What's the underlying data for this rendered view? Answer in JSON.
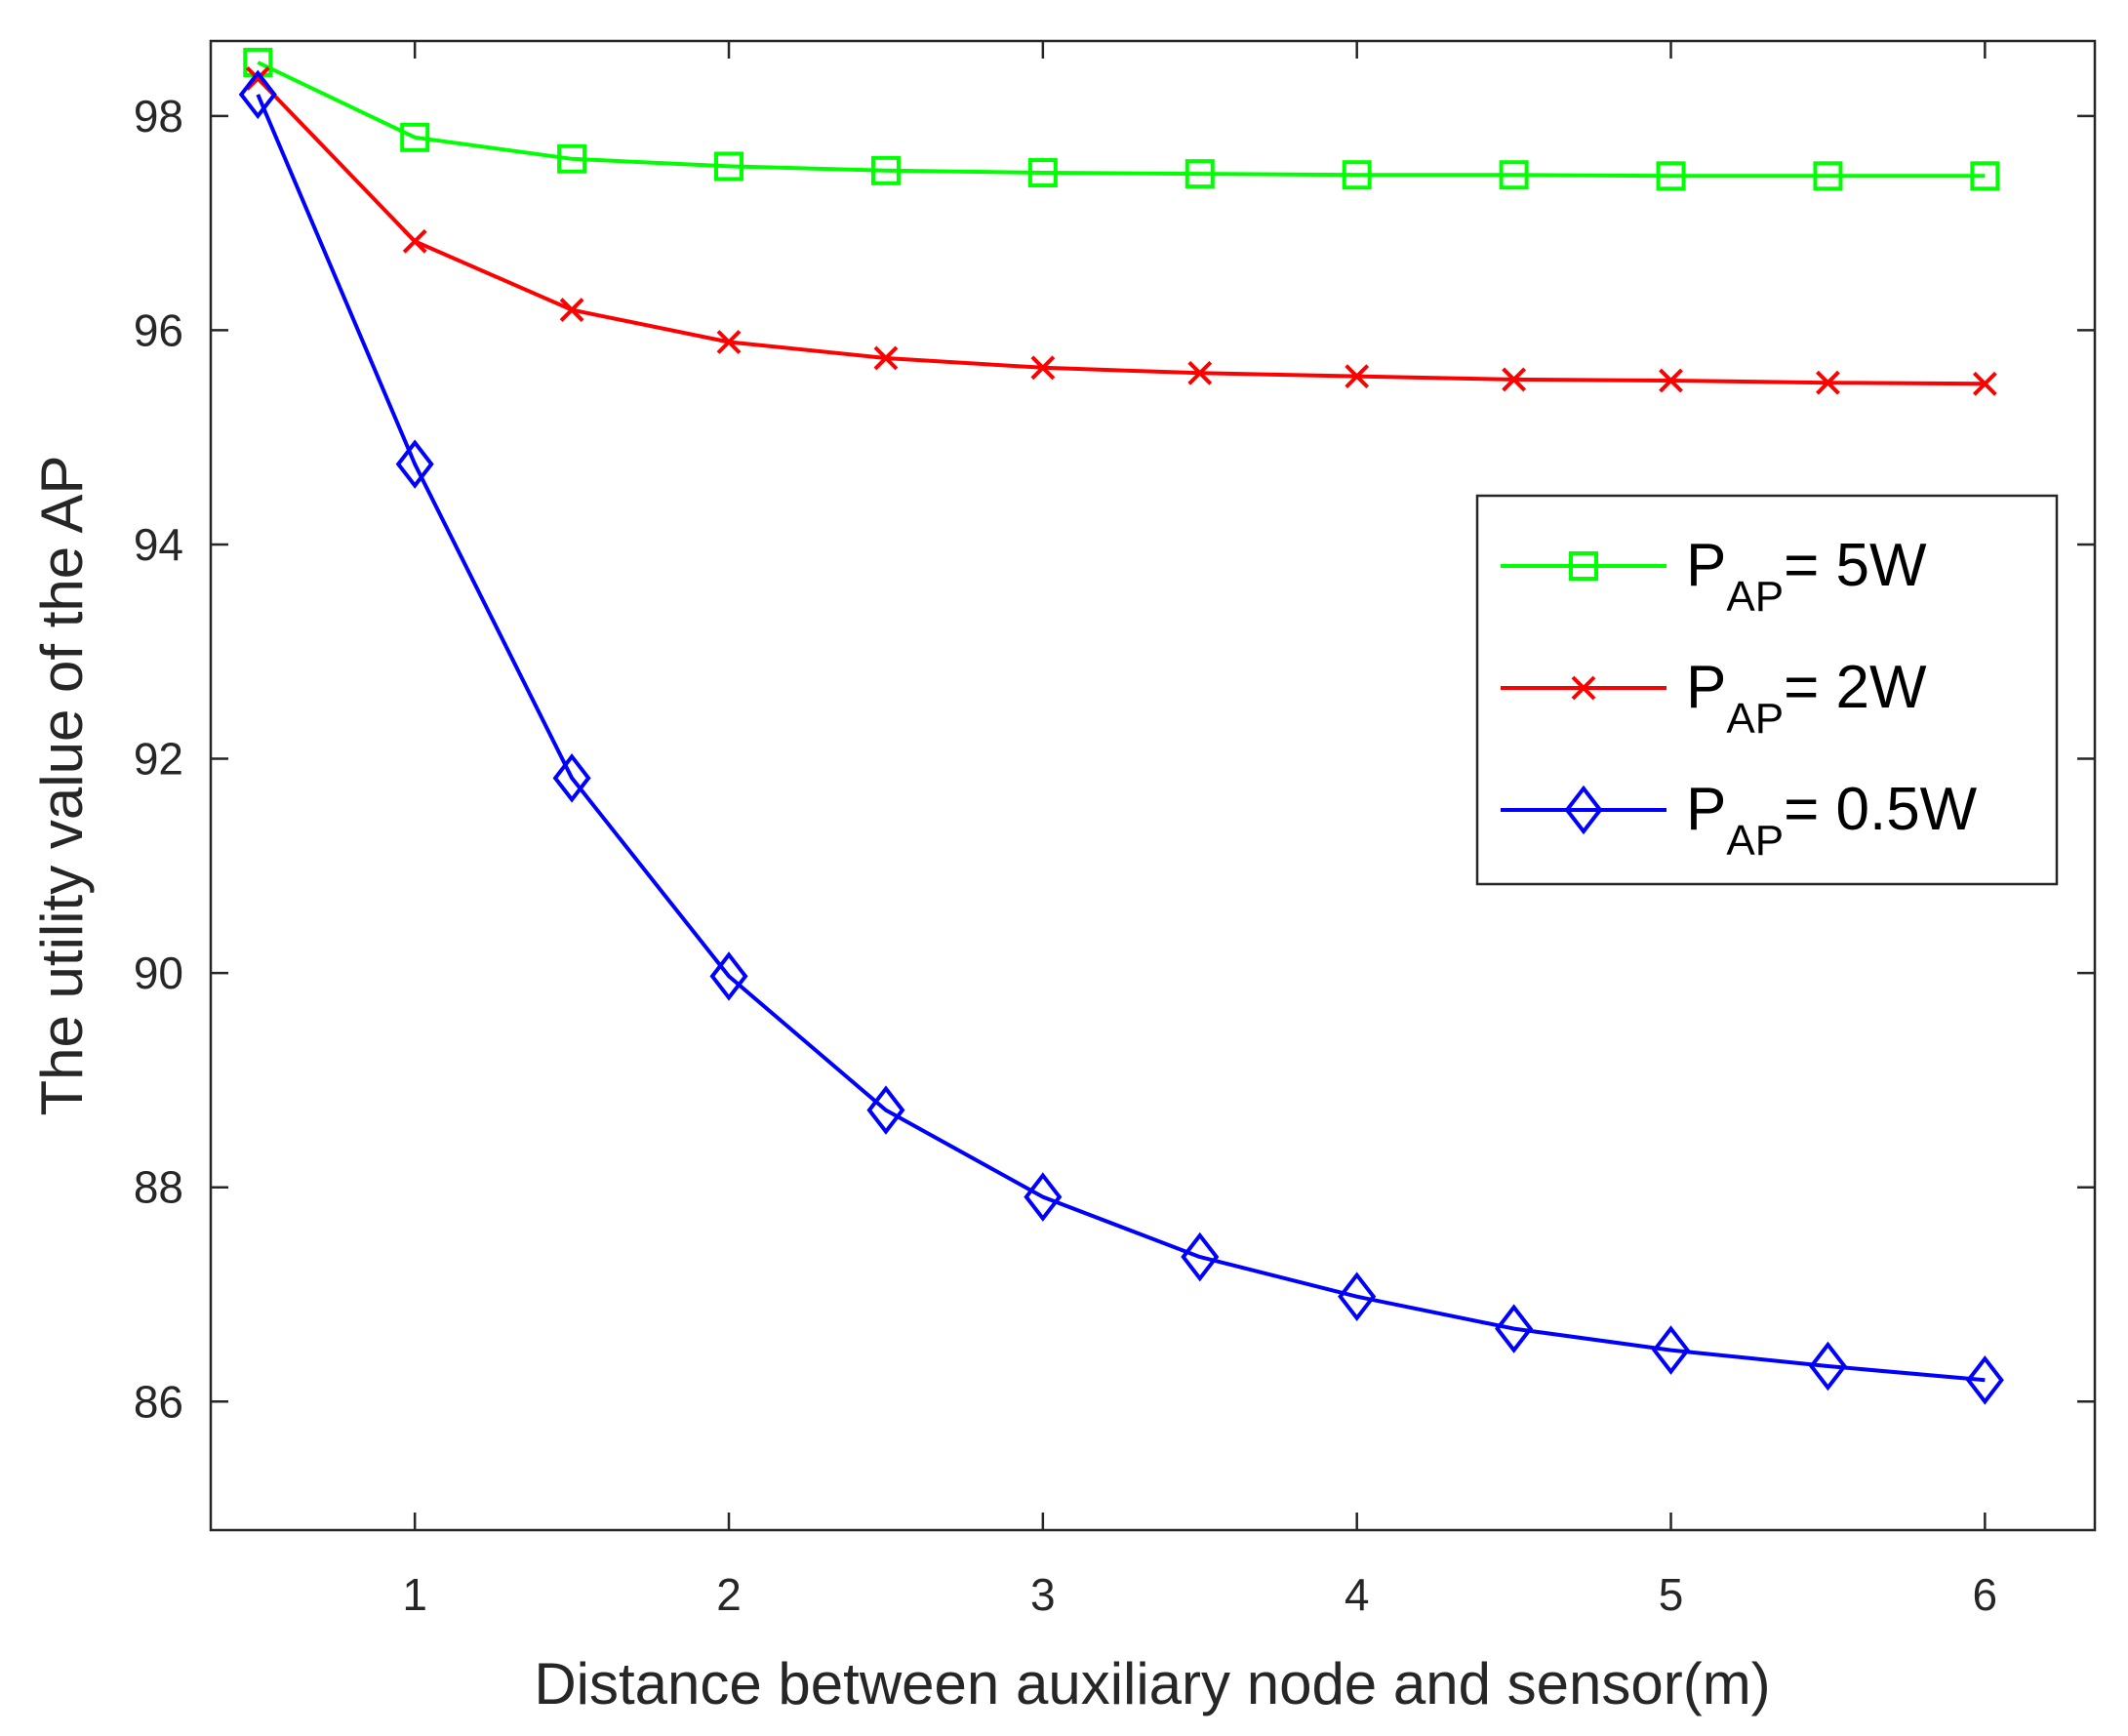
{
  "chart_data": {
    "type": "line",
    "xlabel": "Distance between auxiliary node and sensor(m)",
    "ylabel": "The utility value of the AP",
    "xlim": [
      0.35,
      6.35
    ],
    "ylim": [
      84.8,
      98.7
    ],
    "xticks": [
      1,
      2,
      3,
      4,
      5,
      6
    ],
    "yticks": [
      86,
      88,
      90,
      92,
      94,
      96,
      98
    ],
    "grid": false,
    "legend_position": "right, upper-middle",
    "x": [
      0.5,
      1,
      1.5,
      2,
      2.5,
      3,
      3.5,
      4,
      4.5,
      5,
      5.5,
      6
    ],
    "series": [
      {
        "name": "P_AP= 5W",
        "label_main": "P",
        "label_sub": "AP",
        "label_rest": "= 5W",
        "color": "#00ff00",
        "marker": "square",
        "values": [
          98.5,
          97.8,
          97.6,
          97.53,
          97.49,
          97.47,
          97.46,
          97.45,
          97.45,
          97.44,
          97.44,
          97.44
        ]
      },
      {
        "name": "P_AP= 2W",
        "label_main": "P",
        "label_sub": "AP",
        "label_rest": "= 2W",
        "color": "#ff0000",
        "marker": "x",
        "values": [
          98.35,
          96.83,
          96.19,
          95.89,
          95.74,
          95.65,
          95.6,
          95.57,
          95.54,
          95.53,
          95.51,
          95.5
        ]
      },
      {
        "name": "P_AP= 0.5W",
        "label_main": "P",
        "label_sub": "AP",
        "label_rest": "= 0.5W",
        "color": "#0000ff",
        "marker": "diamond",
        "values": [
          98.2,
          94.75,
          91.82,
          89.97,
          88.72,
          87.91,
          87.35,
          86.98,
          86.68,
          86.48,
          86.33,
          86.2
        ]
      }
    ]
  }
}
